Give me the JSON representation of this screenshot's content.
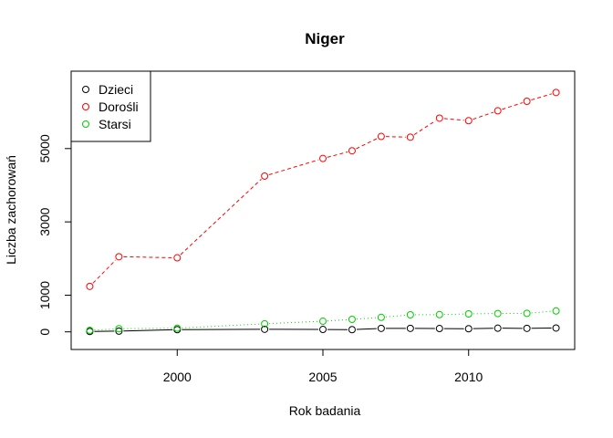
{
  "chart_data": {
    "type": "line",
    "title": "Niger",
    "xlabel": "Rok badania",
    "ylabel": "Liczba zachorowań",
    "xlim": [
      1997,
      2013
    ],
    "ylim": [
      -200,
      6830
    ],
    "x_ticks": [
      2000,
      2005,
      2010
    ],
    "y_ticks": [
      0,
      1000,
      3000,
      5000
    ],
    "grid": false,
    "legend_position": "top-left",
    "series": [
      {
        "name": "Dzieci",
        "color": "#000000",
        "line_style": "solid",
        "points": [
          {
            "x": 1997,
            "y": 10
          },
          {
            "x": 1998,
            "y": 20
          },
          {
            "x": 2000,
            "y": 60
          },
          {
            "x": 2003,
            "y": 70
          },
          {
            "x": 2005,
            "y": 65
          },
          {
            "x": 2006,
            "y": 60
          },
          {
            "x": 2007,
            "y": 95
          },
          {
            "x": 2008,
            "y": 95
          },
          {
            "x": 2009,
            "y": 90
          },
          {
            "x": 2010,
            "y": 85
          },
          {
            "x": 2011,
            "y": 100
          },
          {
            "x": 2012,
            "y": 95
          },
          {
            "x": 2013,
            "y": 105
          }
        ]
      },
      {
        "name": "Dorośli",
        "color": "#ff0000",
        "line_style": "dashed",
        "points": [
          {
            "x": 1997,
            "y": 1240
          },
          {
            "x": 1998,
            "y": 2050
          },
          {
            "x": 2000,
            "y": 2020
          },
          {
            "x": 2003,
            "y": 4250
          },
          {
            "x": 2005,
            "y": 4730
          },
          {
            "x": 2006,
            "y": 4940
          },
          {
            "x": 2007,
            "y": 5330
          },
          {
            "x": 2008,
            "y": 5310
          },
          {
            "x": 2009,
            "y": 5830
          },
          {
            "x": 2010,
            "y": 5760
          },
          {
            "x": 2011,
            "y": 6030
          },
          {
            "x": 2012,
            "y": 6290
          },
          {
            "x": 2013,
            "y": 6530
          }
        ]
      },
      {
        "name": "Starsi",
        "color": "#00cd00",
        "line_style": "dotted",
        "points": [
          {
            "x": 1997,
            "y": 40
          },
          {
            "x": 1998,
            "y": 85
          },
          {
            "x": 2000,
            "y": 100
          },
          {
            "x": 2003,
            "y": 220
          },
          {
            "x": 2005,
            "y": 290
          },
          {
            "x": 2006,
            "y": 340
          },
          {
            "x": 2007,
            "y": 395
          },
          {
            "x": 2008,
            "y": 465
          },
          {
            "x": 2009,
            "y": 470
          },
          {
            "x": 2010,
            "y": 490
          },
          {
            "x": 2011,
            "y": 500
          },
          {
            "x": 2012,
            "y": 505
          },
          {
            "x": 2013,
            "y": 570
          }
        ]
      }
    ]
  }
}
